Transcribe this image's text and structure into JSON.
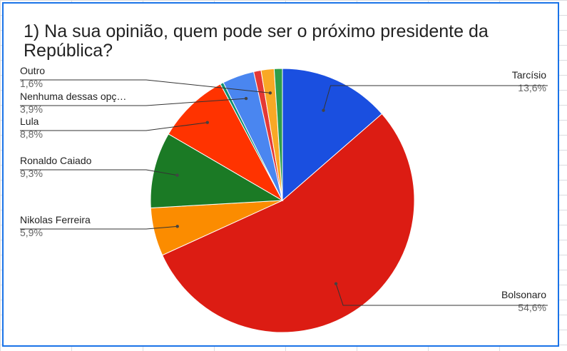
{
  "chart_data": {
    "type": "pie",
    "title": "1) Na sua opinião, quem pode ser o próximo presidente da República?",
    "slices": [
      {
        "label": "Tarcísio",
        "value": 13.6,
        "pct_label": "13,6%",
        "color": "#1a4fe0",
        "side": "right"
      },
      {
        "label": "Bolsonaro",
        "value": 54.6,
        "pct_label": "54,6%",
        "color": "#dc1c13",
        "side": "right"
      },
      {
        "label": "Nikolas Ferreira",
        "value": 5.9,
        "pct_label": "5,9%",
        "color": "#fb8c00",
        "side": "left"
      },
      {
        "label": "Ronaldo Caiado",
        "value": 9.3,
        "pct_label": "9,3%",
        "color": "#1b7a25",
        "side": "left"
      },
      {
        "label": "Lula",
        "value": 8.8,
        "pct_label": "8,8%",
        "color": "#ff3300",
        "side": "left"
      },
      {
        "label": "",
        "value": 0.4,
        "pct_label": "",
        "color": "#0f8f6e",
        "side": "none"
      },
      {
        "label": "Nenhuma dessas opç…",
        "value": 3.9,
        "pct_label": "3,9%",
        "color": "#4a86f0",
        "side": "left"
      },
      {
        "label": "",
        "value": 0.9,
        "pct_label": "",
        "color": "#e53935",
        "side": "none"
      },
      {
        "label": "Outro",
        "value": 1.6,
        "pct_label": "1,6%",
        "color": "#f9a825",
        "side": "left"
      },
      {
        "label": "",
        "value": 1.0,
        "pct_label": "",
        "color": "#2e9e4a",
        "side": "none"
      }
    ],
    "start_angle_deg": 0,
    "direction": "clockwise",
    "legend": "none"
  }
}
